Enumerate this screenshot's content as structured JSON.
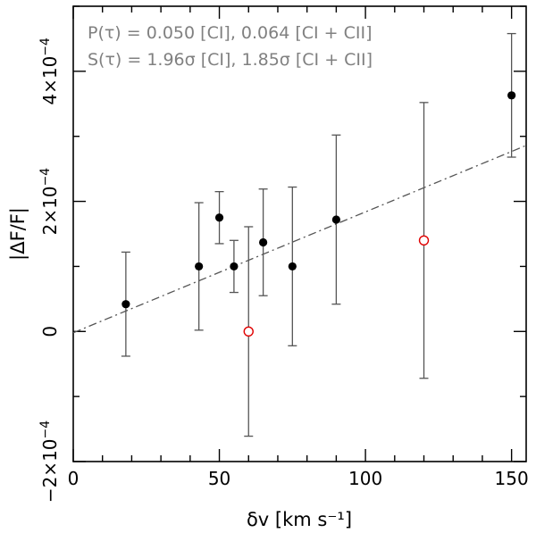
{
  "chart_data": {
    "type": "scatter",
    "title": "",
    "xlabel": "δv [km s⁻¹]",
    "ylabel": "|ΔF/F|",
    "xlim": [
      0,
      155
    ],
    "ylim": [
      -0.0002,
      0.0005
    ],
    "x_ticks": [
      {
        "value": 0,
        "label": "0"
      },
      {
        "value": 50,
        "label": "50"
      },
      {
        "value": 100,
        "label": "100"
      },
      {
        "value": 150,
        "label": "150"
      }
    ],
    "y_ticks": [
      {
        "value": -0.0002,
        "mantissa": "−2×10",
        "exp": "−4"
      },
      {
        "value": 0,
        "mantissa": "0",
        "exp": ""
      },
      {
        "value": 0.0002,
        "mantissa": "2×10",
        "exp": "−4"
      },
      {
        "value": 0.0004,
        "mantissa": "4×10",
        "exp": "−4"
      }
    ],
    "annotations": [
      "P(τ) = 0.050 [CI], 0.064 [CI + CII]",
      "S(τ) = 1.96σ [CI], 1.85σ [CI + CII]"
    ],
    "series": [
      {
        "name": "CI",
        "marker": "filled-circle",
        "color": "#000000",
        "points": [
          {
            "x": 18,
            "y": 4.2e-05,
            "err": 8e-05
          },
          {
            "x": 43,
            "y": 0.0001,
            "err": 9.8e-05
          },
          {
            "x": 50,
            "y": 0.000175,
            "err": 4e-05
          },
          {
            "x": 55,
            "y": 0.0001,
            "err": 4e-05
          },
          {
            "x": 65,
            "y": 0.000137,
            "err": 8.2e-05
          },
          {
            "x": 75,
            "y": 0.0001,
            "err": 0.000122
          },
          {
            "x": 90,
            "y": 0.000172,
            "err": 0.00013
          },
          {
            "x": 150,
            "y": 0.000363,
            "err": 9.5e-05
          }
        ]
      },
      {
        "name": "CII",
        "marker": "open-circle",
        "color": "#e00000",
        "points": [
          {
            "x": 60,
            "y": 0.0,
            "err": 0.000161
          },
          {
            "x": 120,
            "y": 0.00014,
            "err": 0.000212
          }
        ]
      }
    ],
    "fit_line": {
      "style": "dash-dot",
      "x": [
        0,
        155
      ],
      "y": [
        -2e-06,
        0.000286
      ]
    }
  }
}
